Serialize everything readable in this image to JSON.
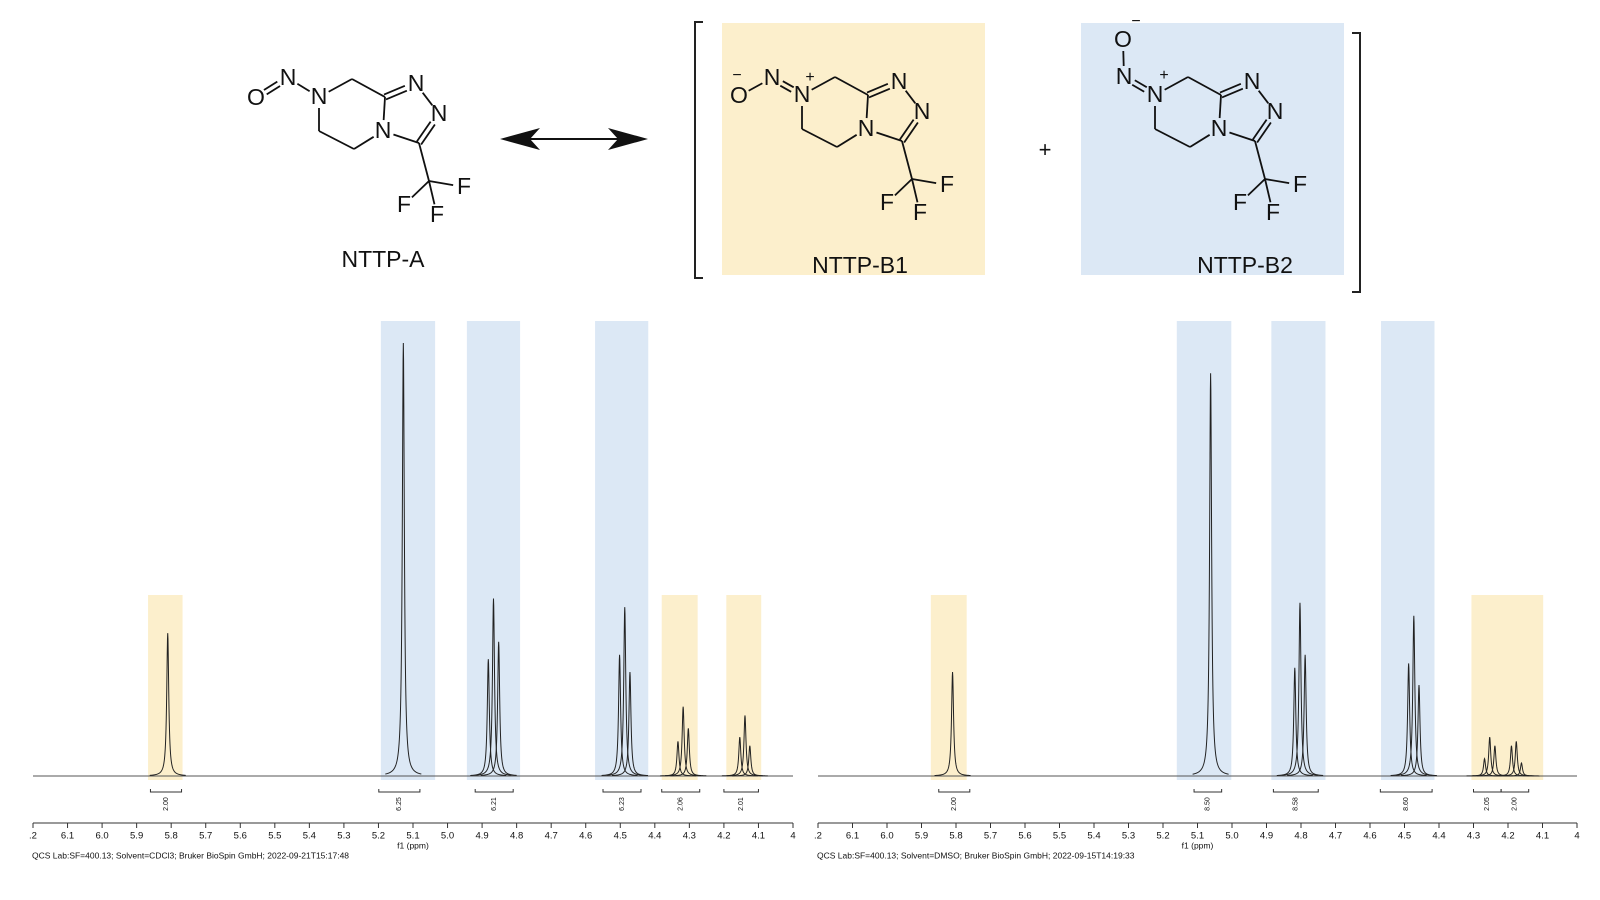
{
  "structures": [
    {
      "label": "NTTP-A",
      "atoms": [
        "O",
        "N",
        "N",
        "N",
        "N",
        "N",
        "F",
        "F",
        "F"
      ]
    },
    {
      "label": "NTTP-B1",
      "color": "#fcefcc",
      "atoms": [
        "O",
        "−",
        "N",
        "N",
        "+",
        "N",
        "N",
        "N",
        "F",
        "F",
        "F"
      ]
    },
    {
      "label": "NTTP-B2",
      "color": "#dce8f5",
      "atoms": [
        "O",
        "−",
        "N",
        "N",
        "+",
        "N",
        "N",
        "N",
        "F",
        "F",
        "F"
      ]
    }
  ],
  "plus": "+",
  "chart_data": [
    {
      "type": "spectrum",
      "x_label": "f1 (ppm)",
      "footer": "QCS Lab:SF=400.13; Solvent=CDCl3; Bruker BioSpin GmbH; 2022-09-21T15:17:48",
      "xlim": [
        6.2,
        4.0
      ],
      "xticks": [
        {
          "value": 6.2,
          "label": ".2"
        },
        6.1,
        {
          "value": 6,
          "label": "6.0"
        },
        5.9,
        5.8,
        5.7,
        5.6,
        5.5,
        5.4,
        5.3,
        5.2,
        5.1,
        {
          "value": 5,
          "label": "5.0"
        },
        4.9,
        4.8,
        4.7,
        4.6,
        4.5,
        4.4,
        4.3,
        4.2,
        4.1,
        4
      ],
      "color": "#222222",
      "x": [
        5.81,
        5.128,
        4.882,
        4.867,
        4.852,
        4.502,
        4.487,
        4.472,
        4.333,
        4.318,
        4.303,
        4.154,
        4.139,
        4.125
      ],
      "values": [
        33,
        100,
        27,
        41,
        31,
        28,
        39,
        24,
        8,
        16,
        11,
        9,
        14,
        7
      ],
      "highlights": [
        {
          "range": [
            5.867,
            5.767
          ],
          "color": "#fcefcc"
        },
        {
          "range": [
            5.193,
            5.036
          ],
          "color": "#dce8f5"
        },
        {
          "range": [
            4.944,
            4.79
          ],
          "color": "#dce8f5"
        },
        {
          "range": [
            4.573,
            4.419
          ],
          "color": "#dce8f5"
        },
        {
          "range": [
            4.38,
            4.276
          ],
          "color": "#fcefcc"
        },
        {
          "range": [
            4.193,
            4.092
          ],
          "color": "#fcefcc"
        }
      ],
      "integrals": [
        {
          "range": [
            5.86,
            5.77
          ],
          "label": "2.00"
        },
        {
          "range": [
            5.199,
            5.08
          ],
          "label": "6.25"
        },
        {
          "range": [
            4.92,
            4.81
          ],
          "label": "6.21"
        },
        {
          "range": [
            4.55,
            4.44
          ],
          "label": "6.23"
        },
        {
          "range": [
            4.38,
            4.27
          ],
          "label": "2.06"
        },
        {
          "range": [
            4.2,
            4.1
          ],
          "label": "2.01"
        }
      ]
    },
    {
      "type": "spectrum",
      "x_label": "f1 (ppm)",
      "footer": "QCS Lab:SF=400.13; Solvent=DMSO; Bruker BioSpin GmbH; 2022-09-15T14:19:33",
      "xlim": [
        6.2,
        4.0
      ],
      "xticks": [
        {
          "value": 6.2,
          "label": ".2"
        },
        6.1,
        {
          "value": 6,
          "label": "6.0"
        },
        5.9,
        5.8,
        5.7,
        5.6,
        5.5,
        5.4,
        5.3,
        5.2,
        5.1,
        {
          "value": 5,
          "label": "5.0"
        },
        4.9,
        4.8,
        4.7,
        4.6,
        4.5,
        4.4,
        4.3,
        4.2,
        4.1,
        4
      ],
      "color": "#222222",
      "x": [
        5.81,
        5.062,
        4.818,
        4.803,
        4.788,
        4.488,
        4.473,
        4.458,
        4.268,
        4.253,
        4.238,
        4.19,
        4.176,
        4.161
      ],
      "values": [
        24,
        93,
        25,
        40,
        28,
        26,
        37,
        21,
        4,
        9,
        7,
        7,
        8,
        3
      ],
      "highlights": [
        {
          "range": [
            5.873,
            5.769
          ],
          "color": "#fcefcc"
        },
        {
          "range": [
            5.16,
            5.002
          ],
          "color": "#dce8f5"
        },
        {
          "range": [
            4.886,
            4.729
          ],
          "color": "#dce8f5"
        },
        {
          "range": [
            4.568,
            4.413
          ],
          "color": "#dce8f5"
        },
        {
          "range": [
            4.306,
            4.098
          ],
          "color": "#fcefcc"
        }
      ],
      "integrals": [
        {
          "range": [
            5.85,
            5.76
          ],
          "label": "2.00"
        },
        {
          "range": [
            5.11,
            5.03
          ],
          "label": "8.50"
        },
        {
          "range": [
            4.88,
            4.75
          ],
          "label": "8.58"
        },
        {
          "range": [
            4.57,
            4.42
          ],
          "label": "8.60"
        },
        {
          "range": [
            4.3,
            4.22
          ],
          "label": "2.05"
        },
        {
          "range": [
            4.22,
            4.14
          ],
          "label": "2.00"
        }
      ]
    }
  ]
}
